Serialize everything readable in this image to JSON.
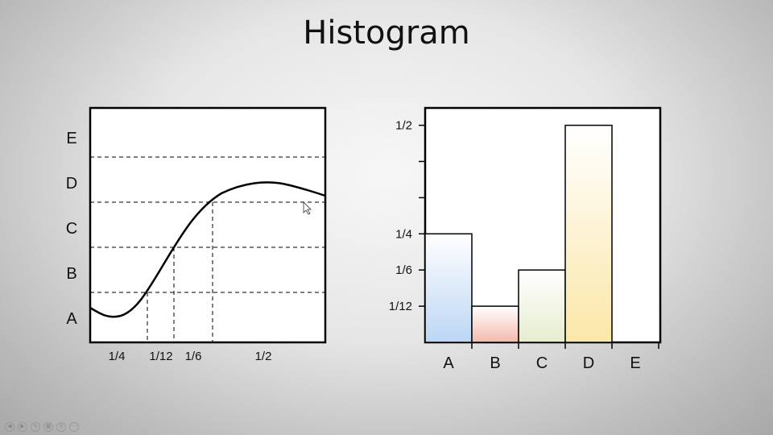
{
  "title": "Histogram",
  "left_panel": {
    "y_levels": [
      "A",
      "B",
      "C",
      "D",
      "E"
    ],
    "x_segment_labels": [
      "1/4",
      "1/12",
      "1/6",
      "1/2"
    ]
  },
  "chart_data": {
    "type": "bar",
    "categories": [
      "A",
      "B",
      "C",
      "D",
      "E"
    ],
    "values": [
      0.25,
      0.0833,
      0.1667,
      0.5,
      0
    ],
    "ytick_labels": [
      "1/12",
      "1/6",
      "1/4",
      "1/2"
    ],
    "ytick_values": [
      0.0833,
      0.1667,
      0.25,
      0.5
    ],
    "yminor_ticks": [
      0.3333,
      0.4167
    ],
    "ylim": [
      0,
      0.54
    ],
    "colors": [
      "#bcd6f4",
      "#f4b9ad",
      "#e6edcf",
      "#fbe7a8",
      "#ffffff"
    ]
  },
  "controls": [
    "prev",
    "next",
    "pen",
    "slides",
    "zoom",
    "more"
  ]
}
